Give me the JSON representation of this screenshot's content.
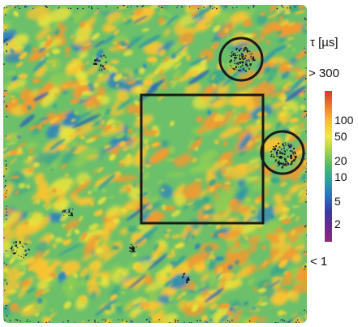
{
  "legend": {
    "title": "τ [µs]",
    "max_label": "> 300",
    "min_label": "< 1",
    "ticks": [
      {
        "label": "100",
        "value": 100
      },
      {
        "label": "50",
        "value": 50
      },
      {
        "label": "20",
        "value": 20
      },
      {
        "label": "10",
        "value": 10
      },
      {
        "label": "5",
        "value": 5
      },
      {
        "label": "2",
        "value": 2
      }
    ],
    "colors": [
      "#e03030",
      "#f07a28",
      "#f8c02c",
      "#f4ea3a",
      "#a4d24a",
      "#4cb86a",
      "#2aa0a0",
      "#2a6ec0",
      "#3a3aa0",
      "#6a2a90",
      "#8a2a78"
    ]
  },
  "map": {
    "background_color": "#6cc06a",
    "marked_regions": [
      "square",
      "circle",
      "circle"
    ]
  }
}
